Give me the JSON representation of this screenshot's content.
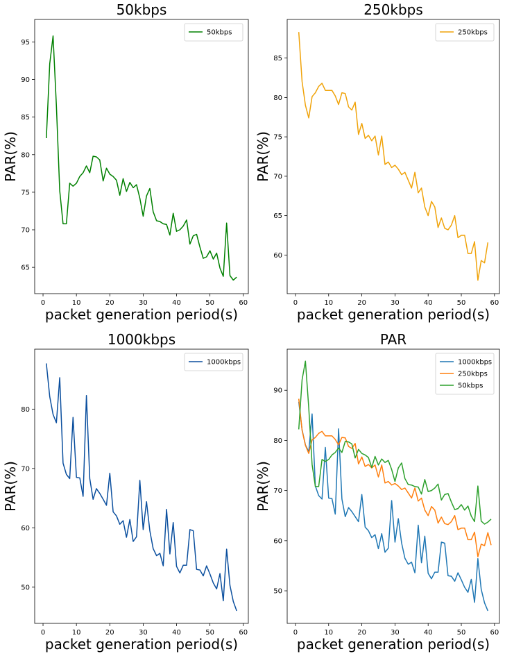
{
  "colors": {
    "green": "#008000",
    "orange": "#f0a30a",
    "blue": "#0b4f9e",
    "c_blue": "#1f77b4",
    "c_orange": "#ff7f0e",
    "c_green": "#2ca02c"
  },
  "chart_data": [
    {
      "type": "line",
      "title": "50kbps",
      "xlabel": "packet generation period(s)",
      "ylabel": "PAR(%)",
      "xlim": [
        -2.5,
        61.5
      ],
      "ylim": [
        61.5,
        98
      ],
      "xticks": [
        0,
        10,
        20,
        30,
        40,
        50,
        60
      ],
      "yticks": [
        65,
        70,
        75,
        80,
        85,
        90,
        95
      ],
      "legend": "top-right",
      "series": [
        {
          "name": "50kbps",
          "color": "#008000",
          "x": [
            1,
            2,
            3,
            4,
            5,
            6,
            7,
            8,
            9,
            10,
            11,
            12,
            13,
            14,
            15,
            16,
            17,
            18,
            19,
            20,
            21,
            22,
            23,
            24,
            25,
            26,
            27,
            28,
            29,
            30,
            31,
            32,
            33,
            34,
            35,
            36,
            37,
            38,
            39,
            40,
            41,
            42,
            43,
            44,
            45,
            46,
            47,
            48,
            49,
            50,
            51,
            52,
            53,
            54,
            55,
            56,
            57,
            58
          ],
          "y": [
            82.2,
            92.1,
            95.8,
            86.5,
            75.2,
            70.8,
            70.8,
            76.2,
            75.8,
            76.2,
            77.1,
            77.6,
            78.5,
            77.6,
            79.8,
            79.7,
            79.3,
            76.5,
            78.2,
            77.4,
            77.1,
            76.6,
            74.6,
            76.8,
            75.1,
            76.3,
            75.6,
            76.0,
            74.2,
            71.8,
            74.5,
            75.5,
            72.4,
            71.2,
            71.1,
            70.8,
            70.7,
            69.3,
            72.2,
            69.8,
            70.0,
            70.5,
            71.3,
            68.1,
            69.2,
            69.4,
            67.7,
            66.2,
            66.4,
            67.2,
            66.1,
            66.9,
            64.9,
            63.8,
            70.9,
            63.9,
            63.3,
            63.7
          ]
        }
      ]
    },
    {
      "type": "line",
      "title": "250kbps",
      "xlabel": "packet generation period(s)",
      "ylabel": "PAR(%)",
      "xlim": [
        -2.5,
        61.5
      ],
      "ylim": [
        55.1,
        89.9
      ],
      "xticks": [
        0,
        10,
        20,
        30,
        40,
        50,
        60
      ],
      "yticks": [
        60,
        65,
        70,
        75,
        80,
        85
      ],
      "legend": "top-right",
      "series": [
        {
          "name": "250kbps",
          "color": "#f0a30a",
          "x": [
            1,
            2,
            3,
            4,
            5,
            6,
            7,
            8,
            9,
            10,
            11,
            12,
            13,
            14,
            15,
            16,
            17,
            18,
            19,
            20,
            21,
            22,
            23,
            24,
            25,
            26,
            27,
            28,
            29,
            30,
            31,
            32,
            33,
            34,
            35,
            36,
            37,
            38,
            39,
            40,
            41,
            42,
            43,
            44,
            45,
            46,
            47,
            48,
            49,
            50,
            51,
            52,
            53,
            54,
            55,
            56,
            57,
            58
          ],
          "y": [
            88.3,
            82.0,
            79.0,
            77.4,
            80.1,
            80.6,
            81.4,
            81.8,
            80.9,
            80.9,
            80.9,
            80.2,
            79.1,
            80.6,
            80.5,
            78.8,
            78.4,
            79.4,
            75.3,
            76.7,
            74.8,
            75.2,
            74.5,
            75.1,
            72.7,
            75.1,
            71.5,
            71.8,
            71.1,
            71.4,
            70.9,
            70.2,
            70.5,
            69.5,
            68.5,
            70.5,
            67.9,
            68.5,
            66.1,
            65.0,
            66.8,
            66.1,
            63.5,
            64.7,
            63.4,
            63.2,
            63.8,
            65.0,
            62.2,
            62.5,
            62.5,
            60.2,
            60.2,
            61.7,
            56.8,
            59.3,
            59.0,
            61.6
          ]
        }
      ]
    },
    {
      "type": "line",
      "title": "1000kbps",
      "xlabel": "packet generation period(s)",
      "ylabel": "PAR(%)",
      "xlim": [
        -2.5,
        61.5
      ],
      "ylim": [
        43.9,
        90.1
      ],
      "xticks": [
        0,
        10,
        20,
        30,
        40,
        50,
        60
      ],
      "yticks": [
        50,
        60,
        70,
        80
      ],
      "legend": "top-right",
      "series": [
        {
          "name": "1000kbps",
          "color": "#0b4f9e",
          "x": [
            1,
            2,
            3,
            4,
            5,
            6,
            7,
            8,
            9,
            10,
            11,
            12,
            13,
            14,
            15,
            16,
            17,
            18,
            19,
            20,
            21,
            22,
            23,
            24,
            25,
            26,
            27,
            28,
            29,
            30,
            31,
            32,
            33,
            34,
            35,
            36,
            37,
            38,
            39,
            40,
            41,
            42,
            43,
            44,
            45,
            46,
            47,
            48,
            49,
            50,
            51,
            52,
            53,
            54,
            55,
            56,
            57,
            58
          ],
          "y": [
            87.7,
            82.1,
            79.1,
            77.7,
            85.3,
            70.9,
            69.0,
            68.3,
            78.6,
            68.5,
            68.4,
            65.3,
            82.3,
            68.3,
            64.8,
            66.6,
            65.8,
            64.8,
            63.8,
            69.2,
            62.7,
            62.0,
            60.6,
            61.2,
            58.4,
            61.4,
            57.7,
            58.5,
            68.0,
            59.7,
            64.4,
            59.5,
            56.5,
            55.3,
            55.7,
            53.6,
            63.1,
            55.6,
            60.9,
            53.5,
            52.4,
            53.7,
            53.7,
            59.7,
            59.5,
            53.0,
            52.9,
            51.9,
            53.6,
            52.2,
            50.7,
            49.7,
            52.3,
            47.7,
            56.4,
            50.3,
            47.6,
            46.0
          ]
        }
      ]
    },
    {
      "type": "line",
      "title": "PAR",
      "xlabel": "packet generation period(s)",
      "ylabel": "PAR(%)",
      "xlim": [
        -2.5,
        61.5
      ],
      "ylim": [
        43.5,
        98.2
      ],
      "xticks": [
        0,
        10,
        20,
        30,
        40,
        50,
        60
      ],
      "yticks": [
        50,
        60,
        70,
        80,
        90
      ],
      "legend": "top-right",
      "series": [
        {
          "name": "1000kbps",
          "color": "#1f77b4",
          "x": [
            1,
            2,
            3,
            4,
            5,
            6,
            7,
            8,
            9,
            10,
            11,
            12,
            13,
            14,
            15,
            16,
            17,
            18,
            19,
            20,
            21,
            22,
            23,
            24,
            25,
            26,
            27,
            28,
            29,
            30,
            31,
            32,
            33,
            34,
            35,
            36,
            37,
            38,
            39,
            40,
            41,
            42,
            43,
            44,
            45,
            46,
            47,
            48,
            49,
            50,
            51,
            52,
            53,
            54,
            55,
            56,
            57,
            58
          ],
          "y": [
            87.7,
            82.1,
            79.1,
            77.7,
            85.3,
            70.9,
            69.0,
            68.3,
            78.6,
            68.5,
            68.4,
            65.3,
            82.3,
            68.3,
            64.8,
            66.6,
            65.8,
            64.8,
            63.8,
            69.2,
            62.7,
            62.0,
            60.6,
            61.2,
            58.4,
            61.4,
            57.7,
            58.5,
            68.0,
            59.7,
            64.4,
            59.5,
            56.5,
            55.3,
            55.7,
            53.6,
            63.1,
            55.6,
            60.9,
            53.5,
            52.4,
            53.7,
            53.7,
            59.7,
            59.5,
            53.0,
            52.9,
            51.9,
            53.6,
            52.2,
            50.7,
            49.7,
            52.3,
            47.7,
            56.4,
            50.3,
            47.6,
            46.0
          ]
        },
        {
          "name": "250kbps",
          "color": "#ff7f0e",
          "x": [
            1,
            2,
            3,
            4,
            5,
            6,
            7,
            8,
            9,
            10,
            11,
            12,
            13,
            14,
            15,
            16,
            17,
            18,
            19,
            20,
            21,
            22,
            23,
            24,
            25,
            26,
            27,
            28,
            29,
            30,
            31,
            32,
            33,
            34,
            35,
            36,
            37,
            38,
            39,
            40,
            41,
            42,
            43,
            44,
            45,
            46,
            47,
            48,
            49,
            50,
            51,
            52,
            53,
            54,
            55,
            56,
            57,
            58,
            59
          ],
          "y": [
            88.3,
            82.0,
            79.0,
            77.4,
            80.1,
            80.6,
            81.4,
            81.8,
            80.9,
            80.9,
            80.9,
            80.2,
            79.1,
            80.6,
            80.5,
            78.8,
            78.4,
            79.4,
            75.3,
            76.7,
            74.8,
            75.2,
            74.5,
            75.1,
            72.7,
            75.1,
            71.5,
            71.8,
            71.1,
            71.4,
            70.9,
            70.2,
            70.5,
            69.5,
            68.5,
            70.5,
            67.9,
            68.5,
            66.1,
            65.0,
            66.8,
            66.1,
            63.5,
            64.7,
            63.4,
            63.2,
            63.8,
            65.0,
            62.2,
            62.5,
            62.5,
            60.2,
            60.2,
            61.7,
            56.8,
            59.3,
            59.0,
            61.6,
            59.1
          ]
        },
        {
          "name": "50kbps",
          "color": "#2ca02c",
          "x": [
            1,
            2,
            3,
            4,
            5,
            6,
            7,
            8,
            9,
            10,
            11,
            12,
            13,
            14,
            15,
            16,
            17,
            18,
            19,
            20,
            21,
            22,
            23,
            24,
            25,
            26,
            27,
            28,
            29,
            30,
            31,
            32,
            33,
            34,
            35,
            36,
            37,
            38,
            39,
            40,
            41,
            42,
            43,
            44,
            45,
            46,
            47,
            48,
            49,
            50,
            51,
            52,
            53,
            54,
            55,
            56,
            57,
            58,
            59
          ],
          "y": [
            82.2,
            92.1,
            95.8,
            86.5,
            75.2,
            70.8,
            70.8,
            76.2,
            75.8,
            76.2,
            77.1,
            77.6,
            78.5,
            77.6,
            79.8,
            79.7,
            79.3,
            76.5,
            78.2,
            77.4,
            77.1,
            76.6,
            74.6,
            76.8,
            75.1,
            76.3,
            75.6,
            76.0,
            74.2,
            71.8,
            74.5,
            75.5,
            72.4,
            71.2,
            71.1,
            70.8,
            70.7,
            69.3,
            72.2,
            69.8,
            70.0,
            70.5,
            71.3,
            68.1,
            69.2,
            69.4,
            67.7,
            66.2,
            66.4,
            67.2,
            66.1,
            66.9,
            64.9,
            63.8,
            70.9,
            63.9,
            63.3,
            63.7,
            64.3
          ]
        }
      ]
    }
  ]
}
